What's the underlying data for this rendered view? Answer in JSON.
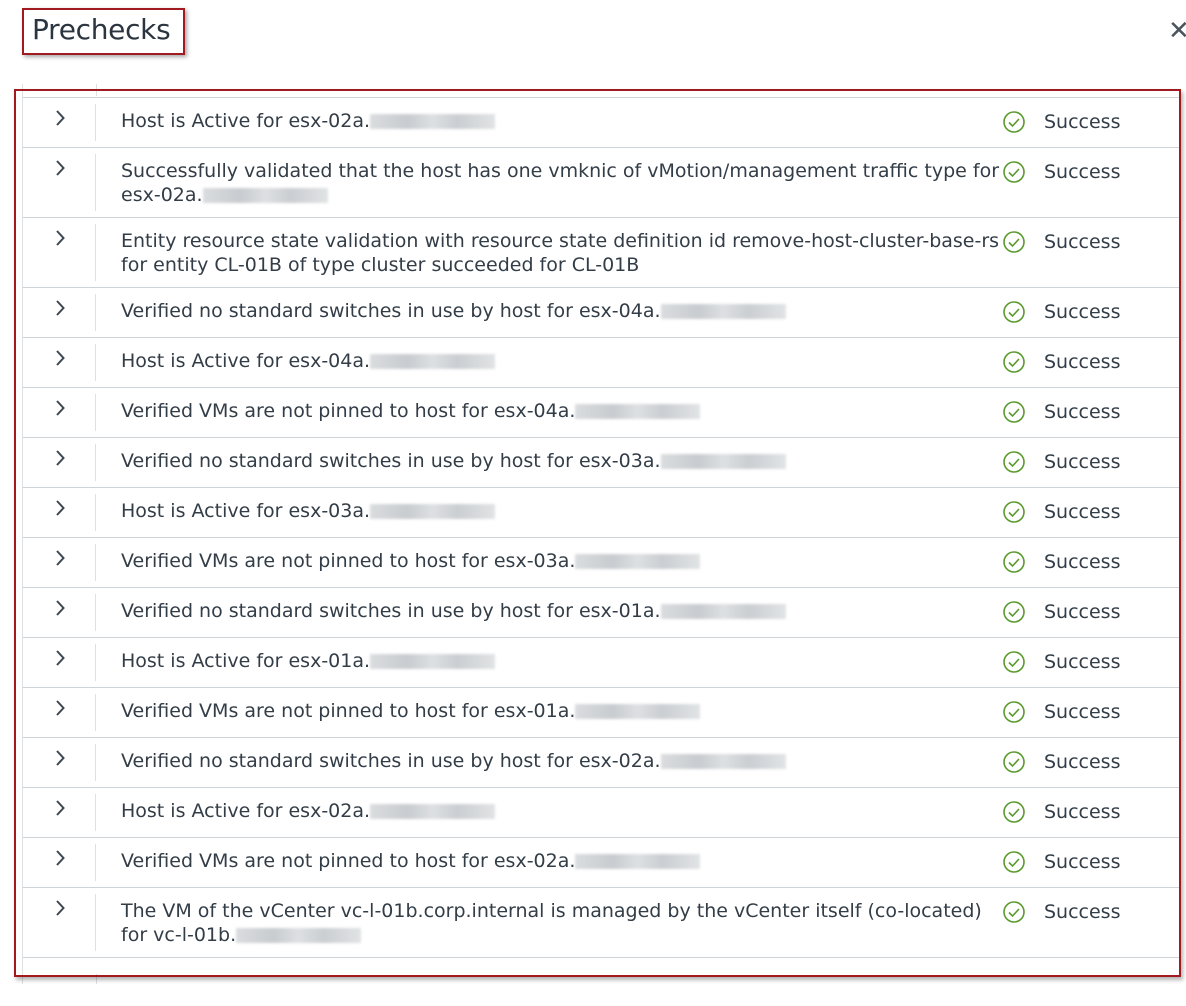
{
  "dialog": {
    "title": "Prechecks",
    "close_icon": "close-icon",
    "success_color": "#5a9a2e",
    "highlight_color": "#a01a1f"
  },
  "rows": [
    {
      "text": "Host is Active for esx-02a.",
      "status": "Success"
    },
    {
      "text": "Successfully validated that the host has one vmknic of vMotion/management traffic type for esx-02a.",
      "status": "Success"
    },
    {
      "text": "Entity resource state validation with resource state definition id remove-host-cluster-base-rs for entity CL-01B of type cluster succeeded for CL-01B",
      "status": "Success",
      "no_blur": true
    },
    {
      "text": "Verified no standard switches in use by host for esx-04a.",
      "status": "Success"
    },
    {
      "text": "Host is Active for esx-04a.",
      "status": "Success"
    },
    {
      "text": "Verified VMs are not pinned to host for esx-04a.",
      "status": "Success"
    },
    {
      "text": "Verified no standard switches in use by host for esx-03a.",
      "status": "Success"
    },
    {
      "text": "Host is Active for esx-03a.",
      "status": "Success"
    },
    {
      "text": "Verified VMs are not pinned to host for esx-03a.",
      "status": "Success"
    },
    {
      "text": "Verified no standard switches in use by host for esx-01a.",
      "status": "Success"
    },
    {
      "text": "Host is Active for esx-01a.",
      "status": "Success"
    },
    {
      "text": "Verified VMs are not pinned to host for esx-01a.",
      "status": "Success"
    },
    {
      "text": "Verified no standard switches in use by host for esx-02a.",
      "status": "Success"
    },
    {
      "text": "Host is Active for esx-02a.",
      "status": "Success"
    },
    {
      "text": "Verified VMs are not pinned to host for esx-02a.",
      "status": "Success"
    },
    {
      "text": "The VM of the vCenter vc-l-01b.corp.internal is managed by the vCenter itself (co-located) for vc-l-01b.",
      "status": "Success"
    }
  ]
}
